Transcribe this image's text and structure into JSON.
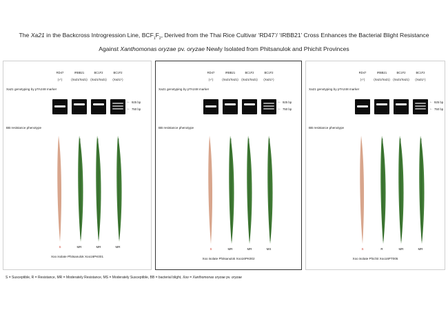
{
  "title": {
    "line1_a": "The ",
    "line1_gene": "Xa21",
    "line1_b": " in the Backcross Introgression Line, BC",
    "line1_sub1": "1",
    "line1_f": "F",
    "line1_sub2": "2",
    "line1_c": ", Derived from the Thai Rice Cultivar ‘RD47’/ ‘IRBB21’ Cross Enhances the Bacterial Blight Resistance",
    "line2_a": "Against ",
    "line2_species": "Xanthomonas oryzae",
    "line2_b": " pv. ",
    "line2_pv": "oryzae",
    "line2_c": " Newly Isolated from Phitsanulok and Phichit Provinces"
  },
  "columns": [
    {
      "name": "RD47",
      "genotype": "(-/-)"
    },
    {
      "name": "IRBB21",
      "genotype": "(Xa21/Xa21)"
    },
    {
      "name": "BC1F2",
      "genotype": "(Xa21/Xa21)"
    },
    {
      "name": "BC1F2",
      "genotype": "(Xa21/-)"
    }
  ],
  "genotyping_label": "Xa21 genotyping by pTA248 marker",
  "phenotype_label": "BB resistance phenotype",
  "band_labels": {
    "upper": "925 bp",
    "lower": "750 bp"
  },
  "panels": [
    {
      "caption": "Xoo isolate Phitsanulok Xoo16PK001",
      "phenotypes": [
        "S",
        "MR",
        "MR",
        "MR"
      ]
    },
    {
      "caption": "Xoo isolate Phitsanulok Xoo16PK002",
      "phenotypes": [
        "S",
        "MR",
        "MR",
        "MS"
      ]
    },
    {
      "caption": "Xoo isolate Phichit Xoo16PT005",
      "phenotypes": [
        "S",
        "R",
        "MR",
        "MR"
      ]
    }
  ],
  "legend": {
    "a": "S = Susceptible, R = Resistance, MR = Moderately Resistance, MS = Moderately Susceptible, BB = bacterial blight, ",
    "b": "Xoo",
    "c": " = ",
    "d": "Xanthomonas oryzae",
    "e": " pv. ",
    "f": "oryzae"
  },
  "colors": {
    "susceptible_leaf": "#d8a58c",
    "resistant_leaf": "#3f7a34",
    "gel_background": "#0d0d0d",
    "band": "#f4f4f4"
  }
}
